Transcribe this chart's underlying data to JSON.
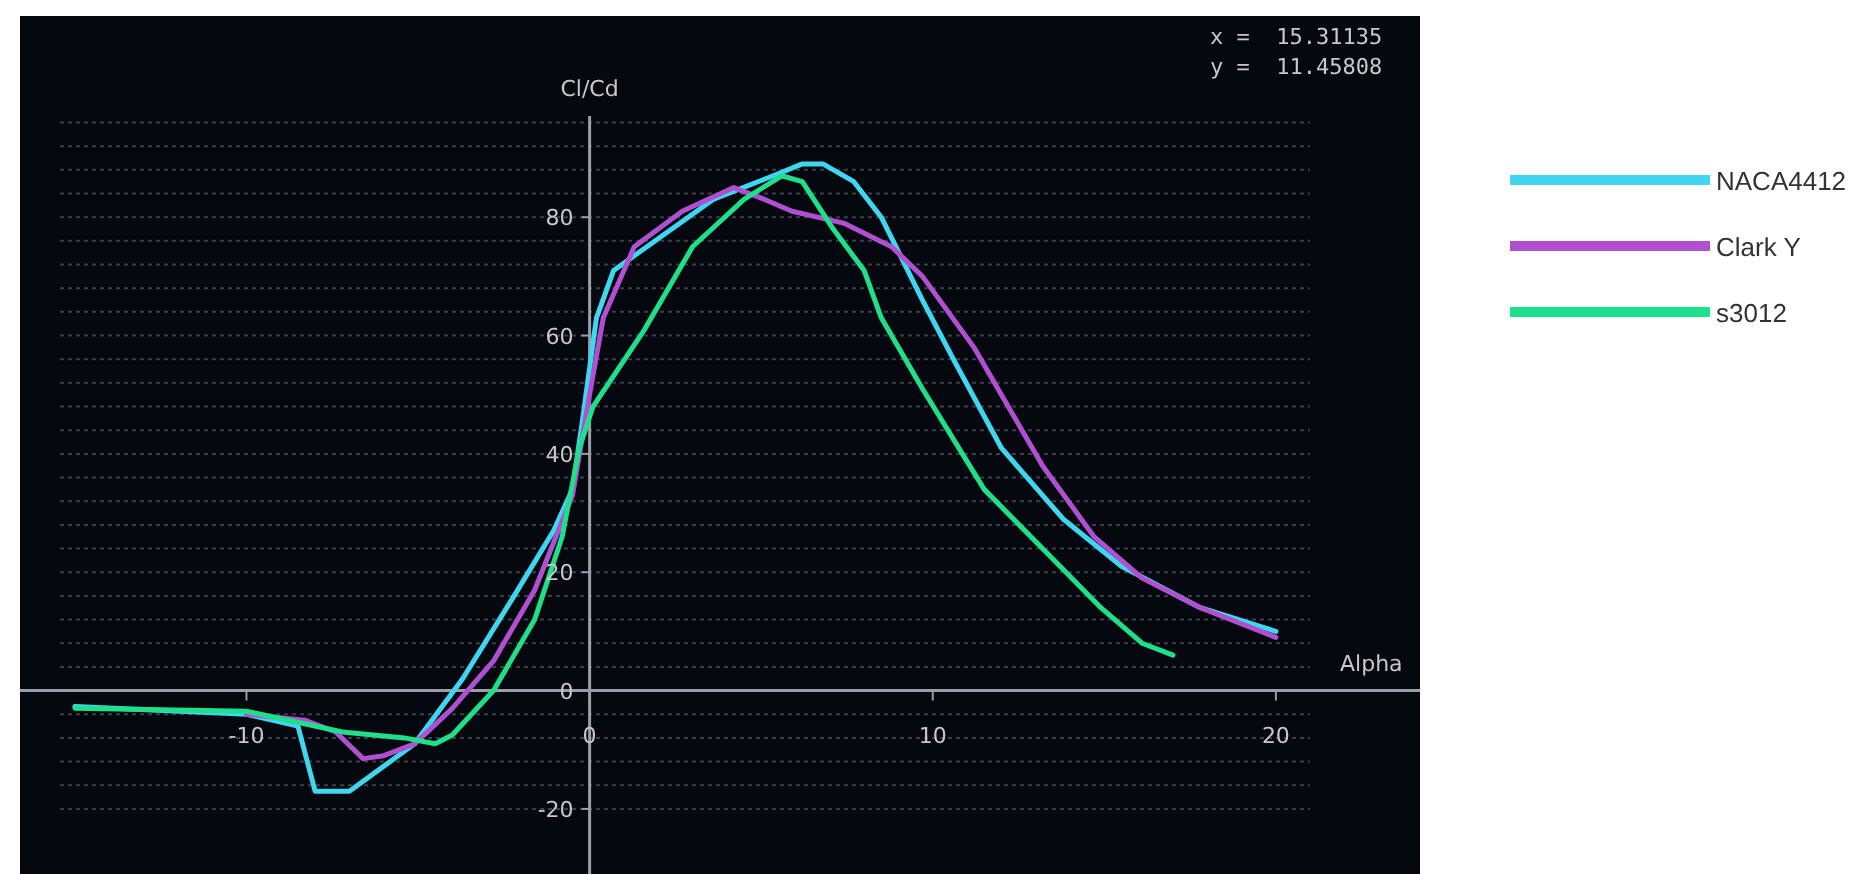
{
  "chart_data": {
    "type": "line",
    "xlabel": "Alpha",
    "ylabel": "Cl/Cd",
    "xlim": [
      -16.6,
      24.2
    ],
    "ylim": [
      -31,
      114
    ],
    "xticks": [
      -10,
      0,
      10,
      20
    ],
    "yticks": [
      -20,
      {
        "value": -16,
        "label": null
      },
      {
        "value": -12,
        "label": null
      },
      {
        "value": -8,
        "label": null
      },
      {
        "value": -4,
        "label": null
      },
      0,
      {
        "value": 4,
        "label": null
      },
      {
        "value": 8,
        "label": null
      },
      {
        "value": 12,
        "label": null
      },
      {
        "value": 16,
        "label": null
      },
      20,
      {
        "value": 24,
        "label": null
      },
      {
        "value": 28,
        "label": null
      },
      {
        "value": 32,
        "label": null
      },
      {
        "value": 36,
        "label": null
      },
      40,
      {
        "value": 44,
        "label": null
      },
      {
        "value": 48,
        "label": null
      },
      {
        "value": 52,
        "label": null
      },
      {
        "value": 56,
        "label": null
      },
      60,
      {
        "value": 64,
        "label": null
      },
      {
        "value": 68,
        "label": null
      },
      {
        "value": 72,
        "label": null
      },
      {
        "value": 76,
        "label": null
      },
      80,
      {
        "value": 84,
        "label": null
      },
      {
        "value": 88,
        "label": null
      },
      {
        "value": 92,
        "label": null
      },
      {
        "value": 96,
        "label": null
      }
    ],
    "grid": "y",
    "legend": "right",
    "marker": "none",
    "line_style": "solid",
    "annotations": [
      "x =  15.31135",
      "y =  11.45808"
    ],
    "series": [
      {
        "name": "NACA4412",
        "color": "#3fd6f0",
        "x": [
          -15,
          -10,
          -8.5,
          -8,
          -7,
          -5.1,
          -3.7,
          -2.2,
          -1.05,
          -0.5,
          -0.2,
          0.2,
          0.7,
          2.15,
          3.6,
          5.35,
          6.2,
          6.8,
          7.7,
          8.5,
          9.7,
          10.6,
          12,
          13.8,
          15.5,
          17.8,
          20
        ],
        "values": [
          -2.7,
          -4,
          -6,
          -17,
          -17,
          -9,
          2,
          16,
          27,
          34,
          46,
          63,
          71,
          77,
          83,
          87,
          89,
          89,
          86,
          80,
          66,
          56,
          41,
          29,
          21,
          14,
          10
        ]
      },
      {
        "name": "Clark Y",
        "color": "#b04fd0",
        "x": [
          -10,
          -8.3,
          -7.4,
          -6.6,
          -6,
          -5.1,
          -4,
          -2.8,
          -1.6,
          -0.5,
          0,
          0.4,
          1.3,
          2.7,
          4.2,
          5.1,
          5.9,
          7.4,
          8.8,
          9.7,
          11.2,
          12,
          13.2,
          14.7,
          16.1,
          17.8,
          20
        ],
        "values": [
          -4,
          -5,
          -7,
          -11.5,
          -11,
          -9,
          -3,
          5,
          17,
          33,
          50,
          63,
          75,
          81,
          85,
          83,
          81,
          79,
          75,
          70,
          58,
          50,
          38,
          26,
          19,
          14,
          9
        ]
      },
      {
        "name": "s3012",
        "color": "#1fe08a",
        "x": [
          -15,
          -10,
          -7.2,
          -5.4,
          -4.5,
          -4,
          -2.8,
          -1.6,
          -0.8,
          -0.3,
          0.1,
          1.6,
          3,
          4.5,
          5.6,
          6.2,
          7.1,
          8,
          8.5,
          9.7,
          11.5,
          13.2,
          14.9,
          16.1,
          17
        ],
        "values": [
          -3,
          -3.5,
          -7,
          -8,
          -9,
          -7.5,
          0,
          12,
          26,
          41,
          48,
          61,
          75,
          83,
          87,
          86,
          78,
          71,
          63,
          51,
          34,
          24,
          14,
          8,
          6
        ]
      }
    ]
  }
}
